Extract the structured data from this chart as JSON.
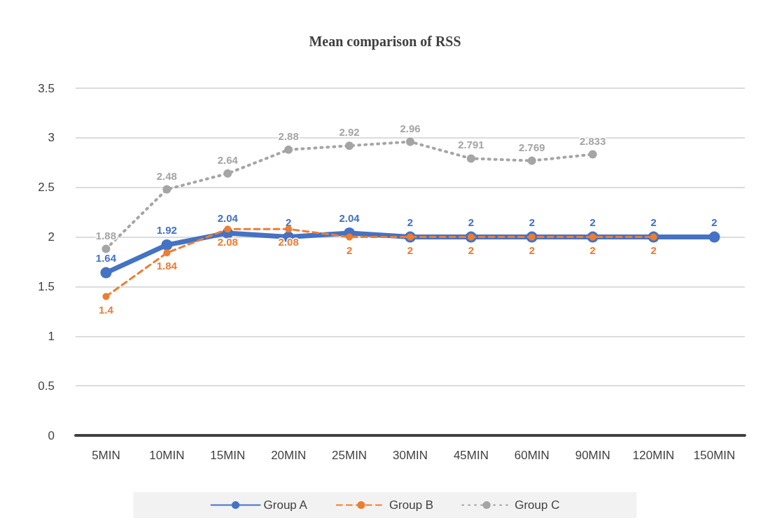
{
  "chart_data": {
    "type": "line",
    "title": "Mean comparison of RSS",
    "categories": [
      "5MIN",
      "10MIN",
      "15MIN",
      "20MIN",
      "25MIN",
      "30MIN",
      "45MIN",
      "60MIN",
      "90MIN",
      "120MIN",
      "150MIN"
    ],
    "series": [
      {
        "name": "Group A",
        "color": "#4472c4",
        "line_style": "solid",
        "values": [
          1.64,
          1.92,
          2.04,
          2,
          2.04,
          2,
          2,
          2,
          2,
          2,
          2
        ]
      },
      {
        "name": "Group B",
        "color": "#ed7d31",
        "line_style": "dashed",
        "values": [
          1.4,
          1.84,
          2.08,
          2.08,
          2,
          2,
          2,
          2,
          2,
          2,
          null
        ]
      },
      {
        "name": "Group C",
        "color": "#a5a5a5",
        "line_style": "dotted",
        "values": [
          1.88,
          2.48,
          2.64,
          2.88,
          2.92,
          2.96,
          2.791,
          2.769,
          2.833,
          null,
          null
        ]
      }
    ],
    "ylim": [
      0,
      3.5
    ],
    "yticks": [
      0,
      0.5,
      1,
      1.5,
      2,
      2.5,
      3,
      3.5
    ],
    "grid": "y",
    "legend": "bottom",
    "marker": "circle",
    "data_labels": true
  }
}
